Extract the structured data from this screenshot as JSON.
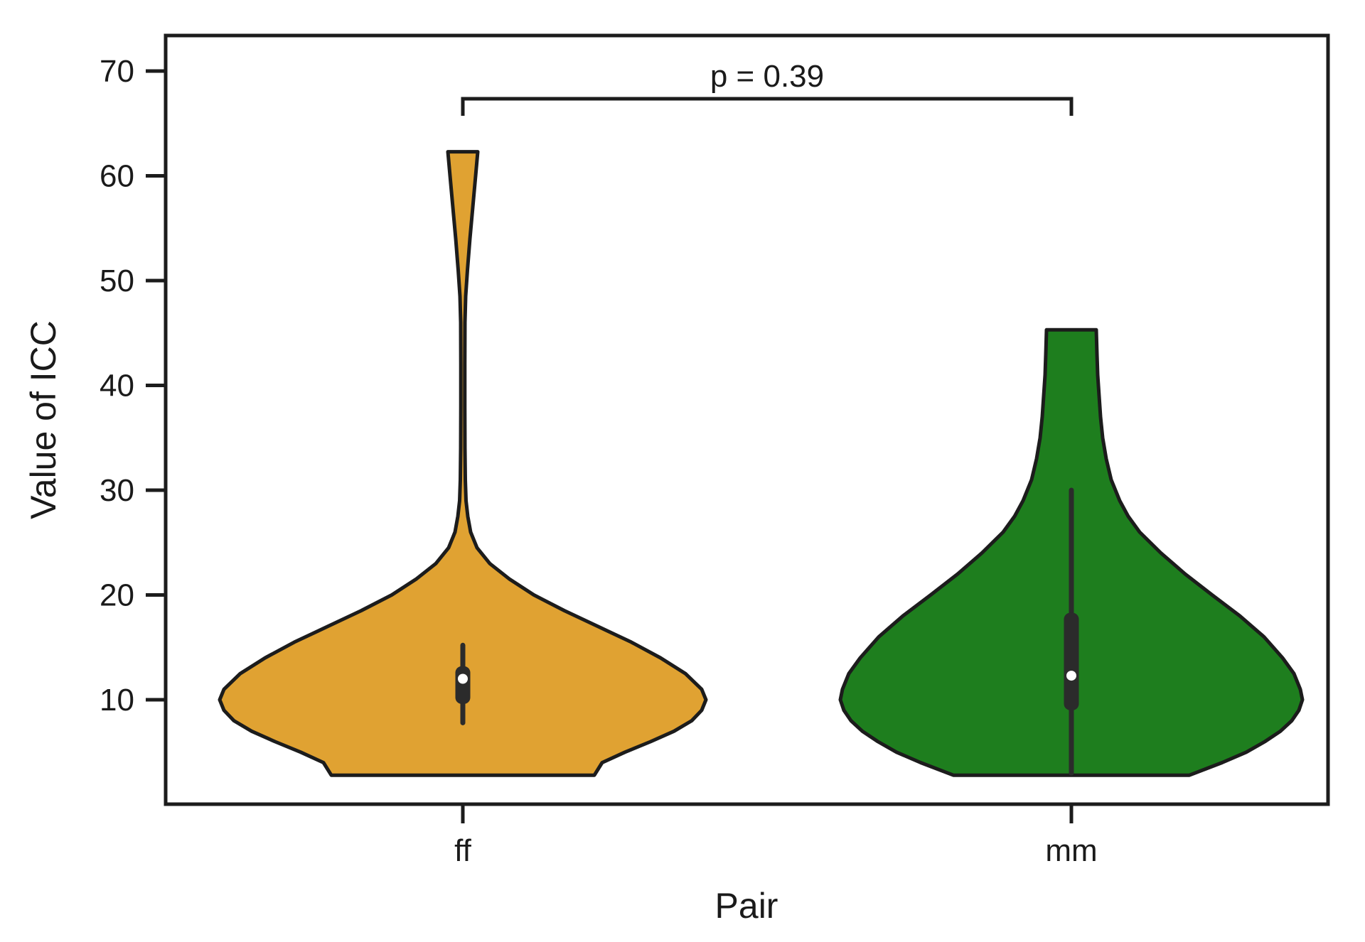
{
  "chart_data": {
    "type": "violin",
    "title": "",
    "xlabel": "Pair",
    "ylabel": "Value of ICC",
    "ylim": [
      0,
      73
    ],
    "yticks": [
      70,
      60,
      50,
      40,
      30,
      20,
      10
    ],
    "grid": false,
    "legend": "none",
    "frame_color": "#1c1c1c",
    "background_color": "#ffffff",
    "annotation": {
      "text": "p = 0.39",
      "from_group": "ff",
      "to_group": "mm"
    },
    "groups": [
      {
        "name": "ff",
        "color": "#E0A232",
        "outline_color": "#1c1c1c",
        "stats": {
          "median": 12.0,
          "q1": 9.6,
          "q3": 13.2,
          "whisker_low": 7.8,
          "whisker_high": 15.2,
          "min": 2.8,
          "max": 62.3
        },
        "profile": [
          [
            62.3,
            21
          ],
          [
            60,
            18
          ],
          [
            57,
            14
          ],
          [
            54,
            10
          ],
          [
            51,
            6.5
          ],
          [
            48.5,
            4
          ],
          [
            46,
            3
          ],
          [
            42,
            2.8
          ],
          [
            38,
            2.8
          ],
          [
            34,
            3
          ],
          [
            31,
            3.5
          ],
          [
            29,
            4.5
          ],
          [
            27.5,
            7
          ],
          [
            26,
            11
          ],
          [
            24.5,
            20
          ],
          [
            23,
            38
          ],
          [
            21.5,
            66
          ],
          [
            20,
            100
          ],
          [
            18.5,
            143
          ],
          [
            17,
            190
          ],
          [
            15.5,
            237
          ],
          [
            14,
            278
          ],
          [
            12.5,
            313
          ],
          [
            11,
            336
          ],
          [
            10,
            342
          ],
          [
            9,
            336
          ],
          [
            8,
            322
          ],
          [
            7,
            297
          ],
          [
            6,
            264
          ],
          [
            5,
            228
          ],
          [
            4,
            196
          ],
          [
            2.8,
            185
          ]
        ]
      },
      {
        "name": "mm",
        "color": "#1E7E1E",
        "outline_color": "#1c1c1c",
        "stats": {
          "median": 12.3,
          "q1": 9.0,
          "q3": 18.3,
          "whisker_low": 3.0,
          "whisker_high": 30.0,
          "min": 2.8,
          "max": 45.3
        },
        "profile": [
          [
            45.3,
            35
          ],
          [
            43,
            36
          ],
          [
            41,
            37
          ],
          [
            39,
            39
          ],
          [
            37,
            41
          ],
          [
            35,
            44
          ],
          [
            33,
            49
          ],
          [
            31,
            56
          ],
          [
            29,
            68
          ],
          [
            27.5,
            80
          ],
          [
            26,
            96
          ],
          [
            24,
            126
          ],
          [
            22,
            160
          ],
          [
            20,
            198
          ],
          [
            18,
            237
          ],
          [
            16,
            271
          ],
          [
            14,
            297
          ],
          [
            12.5,
            313
          ],
          [
            11,
            322
          ],
          [
            10,
            325
          ],
          [
            9,
            320
          ],
          [
            8,
            310
          ],
          [
            7,
            294
          ],
          [
            6,
            272
          ],
          [
            5,
            246
          ],
          [
            4,
            212
          ],
          [
            2.8,
            166
          ]
        ]
      }
    ]
  }
}
